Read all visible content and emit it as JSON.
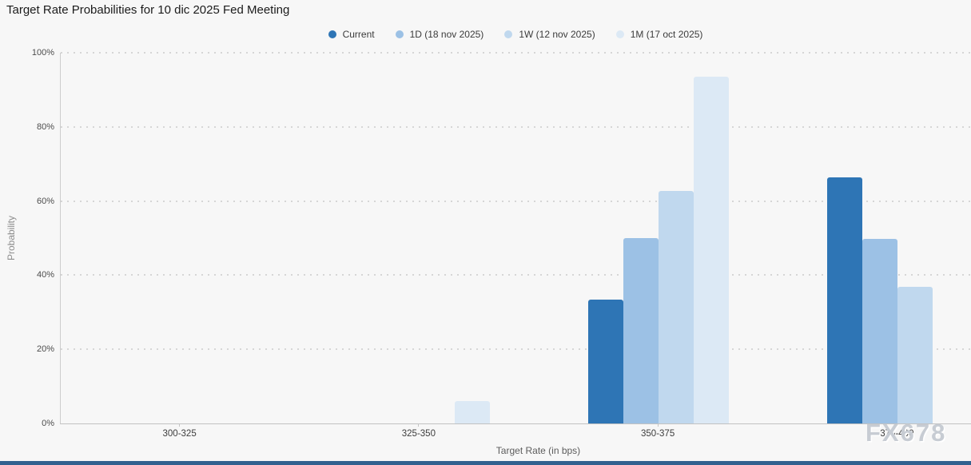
{
  "header": {
    "title": "Target Rate Probabilities for 10 dic 2025 Fed Meeting"
  },
  "watermark": "FX678",
  "chart_data": {
    "type": "bar",
    "title": "Target Rate Probabilities for 10 dic 2025 Fed Meeting",
    "xlabel": "Target Rate (in bps)",
    "ylabel": "Probability",
    "categories": [
      "300-325",
      "325-350",
      "350-375",
      "375-400"
    ],
    "series": [
      {
        "name": "Current",
        "color": "#2e75b5",
        "values": [
          0,
          0,
          33.5,
          66.4
        ]
      },
      {
        "name": "1D (18 nov 2025)",
        "color": "#9cc1e5",
        "values": [
          0,
          0,
          50.1,
          49.7
        ]
      },
      {
        "name": "1W (12 nov 2025)",
        "color": "#c0d8ee",
        "values": [
          0,
          0,
          62.7,
          36.9
        ]
      },
      {
        "name": "1M (17 oct 2025)",
        "color": "#dce9f5",
        "values": [
          0,
          6.0,
          93.5,
          0
        ]
      }
    ],
    "ylim": [
      0,
      100
    ],
    "yticks": [
      0,
      20,
      40,
      60,
      80,
      100
    ],
    "ytick_suffix": "%",
    "grid": "horizontal-dotted",
    "legend_position": "top-center"
  },
  "colors": {
    "background": "#f7f7f7",
    "axis_line": "#cccccc",
    "baseline": "#c2c2c2",
    "gridline": "#d6d6d6",
    "bottom_bar": "#31618f",
    "watermark_text": "#c7ccd3",
    "series_current": "#2e75b5",
    "series_1d": "#9cc1e5",
    "series_1w": "#c0d8ee",
    "series_1m": "#dce9f5"
  }
}
